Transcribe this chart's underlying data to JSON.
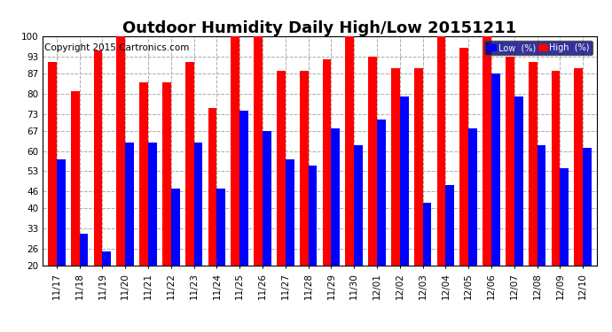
{
  "title": "Outdoor Humidity Daily High/Low 20151211",
  "copyright": "Copyright 2015 Cartronics.com",
  "dates": [
    "11/17",
    "11/18",
    "11/19",
    "11/20",
    "11/21",
    "11/22",
    "11/23",
    "11/24",
    "11/25",
    "11/26",
    "11/27",
    "11/28",
    "11/29",
    "11/30",
    "12/01",
    "12/02",
    "12/03",
    "12/04",
    "12/05",
    "12/06",
    "12/07",
    "12/08",
    "12/09",
    "12/10"
  ],
  "high": [
    91,
    81,
    95,
    100,
    84,
    84,
    91,
    75,
    100,
    100,
    88,
    88,
    92,
    100,
    93,
    89,
    89,
    100,
    96,
    100,
    93,
    91,
    88,
    89
  ],
  "low": [
    57,
    31,
    25,
    63,
    63,
    47,
    63,
    47,
    74,
    67,
    57,
    55,
    68,
    62,
    71,
    79,
    42,
    48,
    68,
    87,
    79,
    62,
    54,
    61
  ],
  "high_color": "#ff0000",
  "low_color": "#0000ff",
  "bg_color": "#ffffff",
  "grid_color": "#aaaaaa",
  "ylim_min": 20,
  "ylim_max": 100,
  "yticks": [
    20,
    26,
    33,
    40,
    46,
    53,
    60,
    67,
    73,
    80,
    87,
    93,
    100
  ],
  "title_fontsize": 13,
  "tick_fontsize": 7.5,
  "copyright_fontsize": 7.5,
  "legend_low_label": "Low  (%)",
  "legend_high_label": "High  (%)",
  "bar_width": 0.38
}
